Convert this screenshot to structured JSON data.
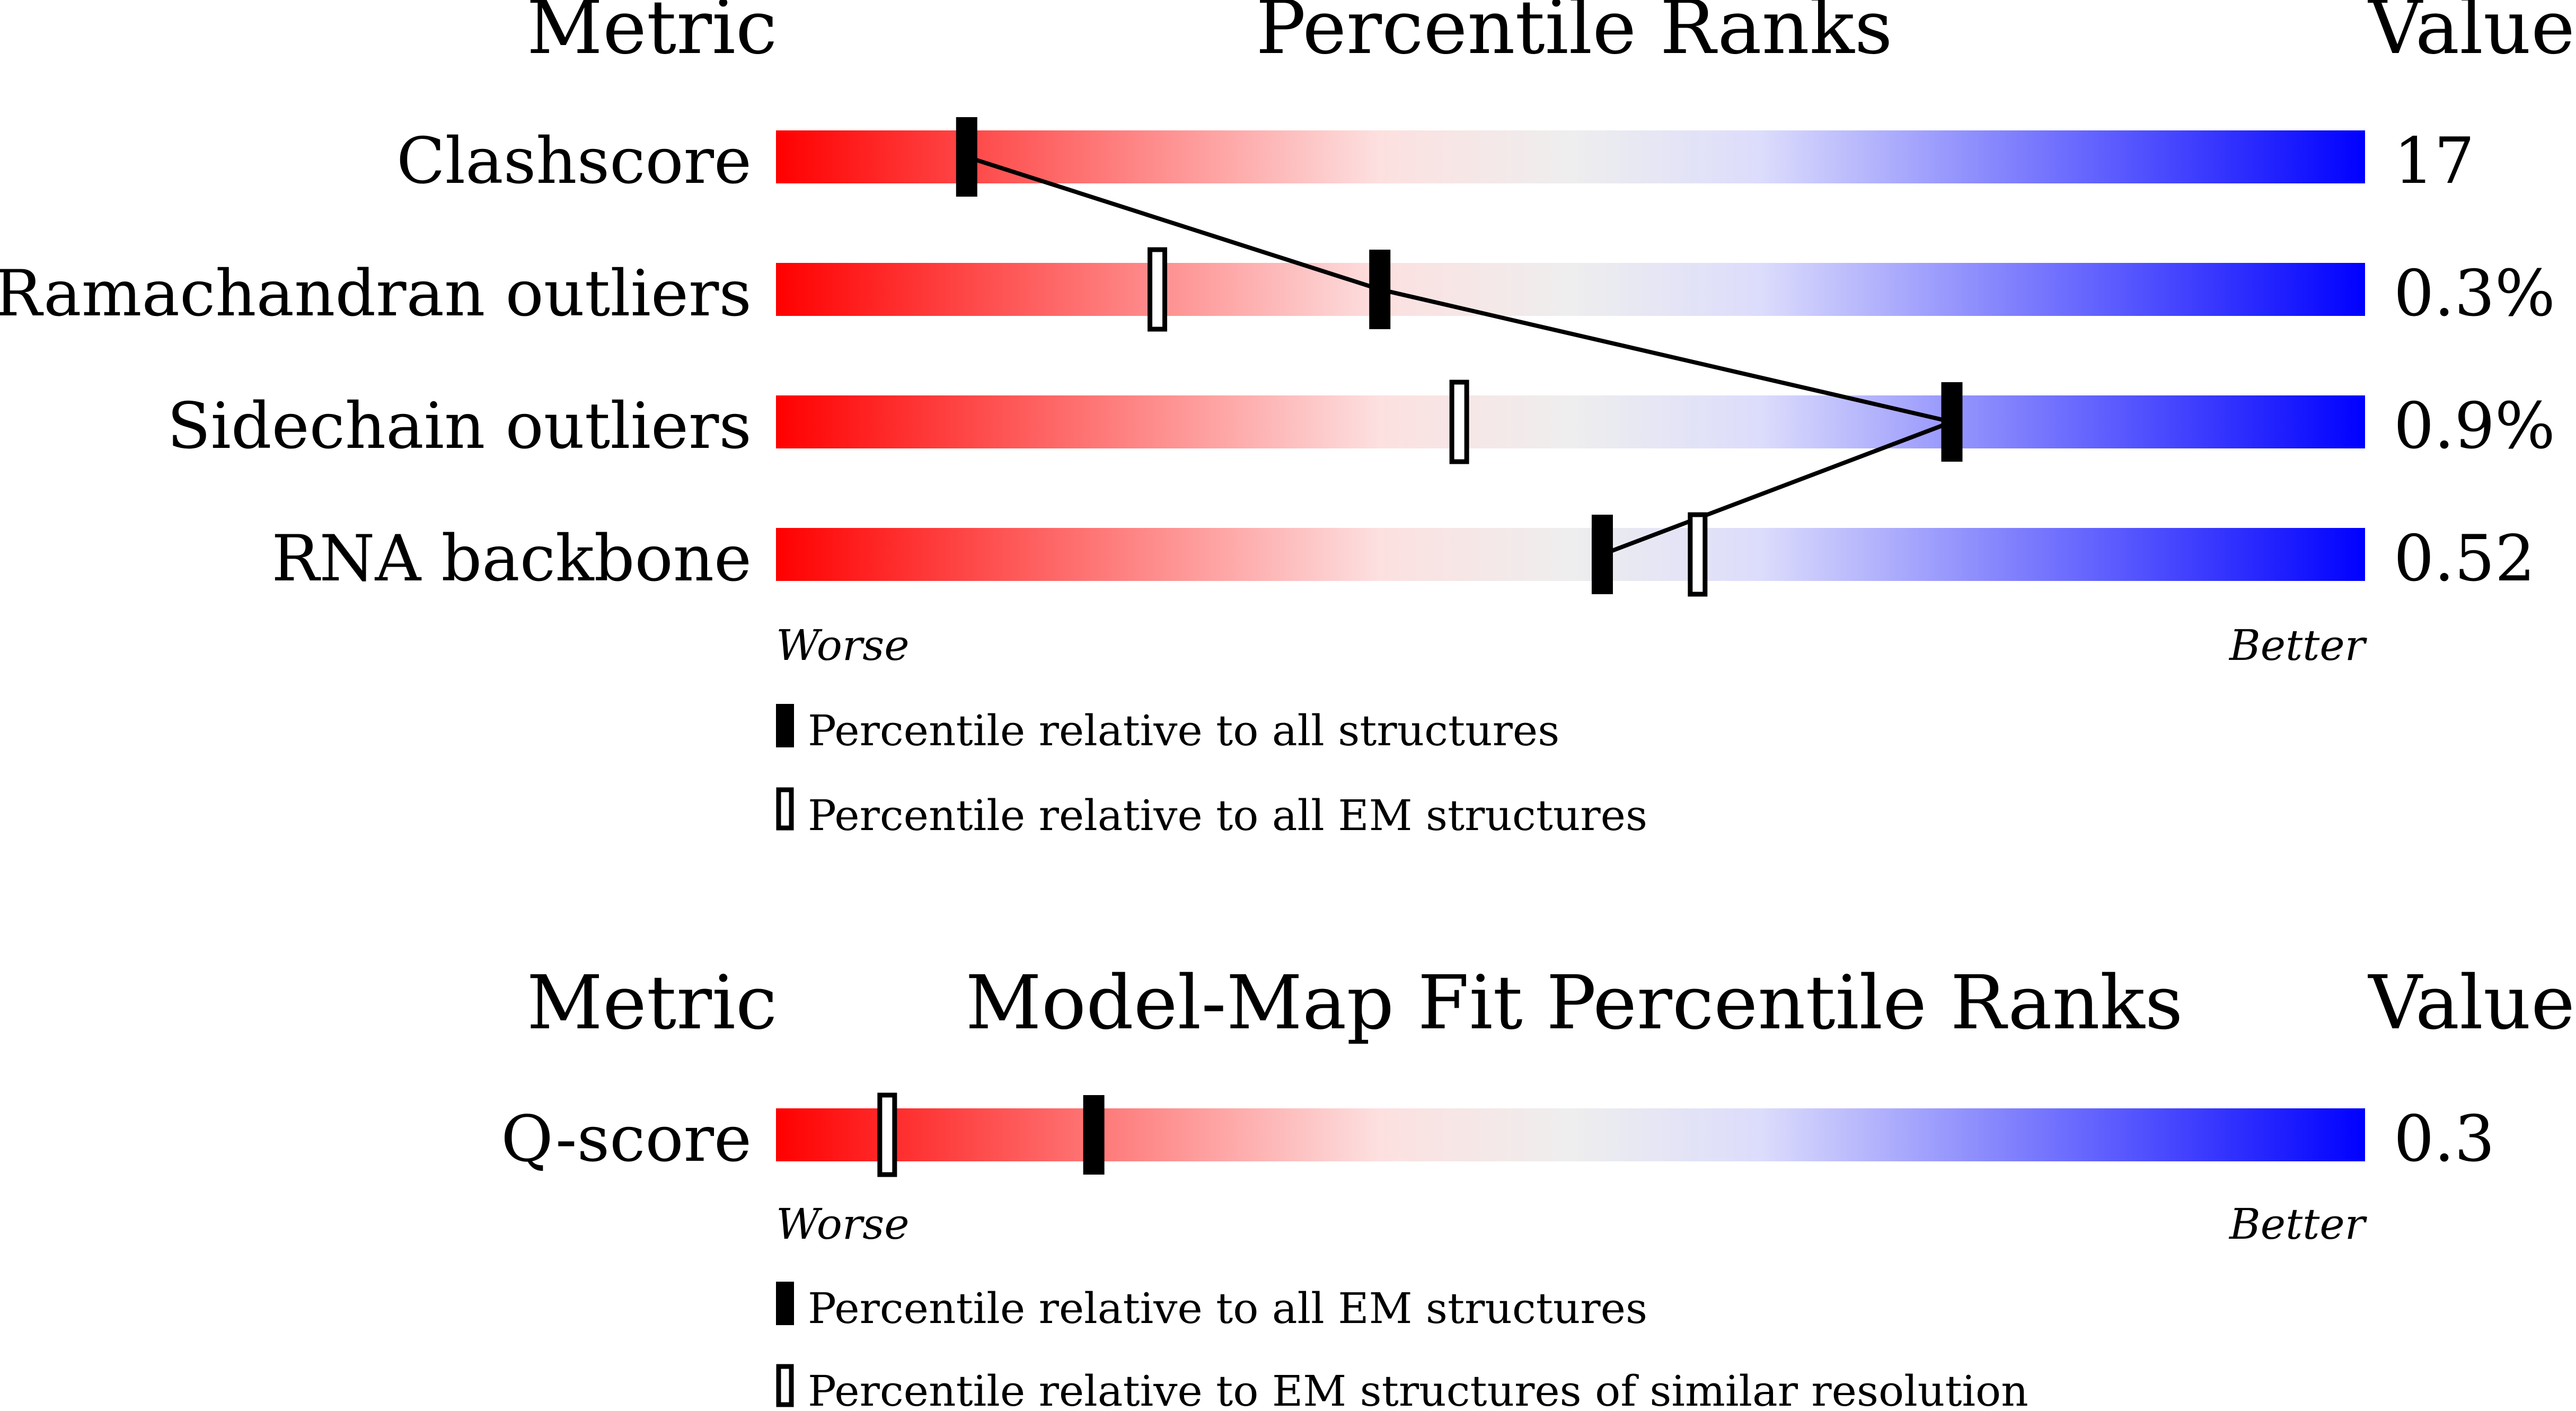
{
  "chart_data": [
    {
      "type": "percentile-ranks",
      "headers": {
        "metric": "Metric",
        "title": "Percentile Ranks",
        "value": "Value"
      },
      "axis": {
        "worse": "Worse",
        "better": "Better",
        "range": [
          0,
          100
        ]
      },
      "gradient_colors": [
        "#ff0000",
        "#eeeeee",
        "#0000ff"
      ],
      "rows": [
        {
          "metric": "Clashscore",
          "value": "17",
          "all": 12,
          "em": null
        },
        {
          "metric": "Ramachandran outliers",
          "value": "0.3%",
          "all": 38,
          "em": 24
        },
        {
          "metric": "Sidechain outliers",
          "value": "0.9%",
          "all": 74,
          "em": 43
        },
        {
          "metric": "RNA backbone",
          "value": "0.52",
          "all": 52,
          "em": 58
        }
      ],
      "legend": [
        {
          "marker": "filled",
          "label": "Percentile relative to all structures"
        },
        {
          "marker": "open",
          "label": "Percentile relative to all EM structures"
        }
      ]
    },
    {
      "type": "percentile-ranks",
      "headers": {
        "metric": "Metric",
        "title": "Model-Map Fit Percentile Ranks",
        "value": "Value"
      },
      "axis": {
        "worse": "Worse",
        "better": "Better",
        "range": [
          0,
          100
        ]
      },
      "gradient_colors": [
        "#ff0000",
        "#eeeeee",
        "#0000ff"
      ],
      "rows": [
        {
          "metric": "Q-score",
          "value": "0.3",
          "all": 20,
          "em": 7
        }
      ],
      "legend": [
        {
          "marker": "filled",
          "label": "Percentile relative to all EM structures"
        },
        {
          "marker": "open",
          "label": "Percentile relative to EM structures of similar resolution"
        }
      ]
    }
  ]
}
